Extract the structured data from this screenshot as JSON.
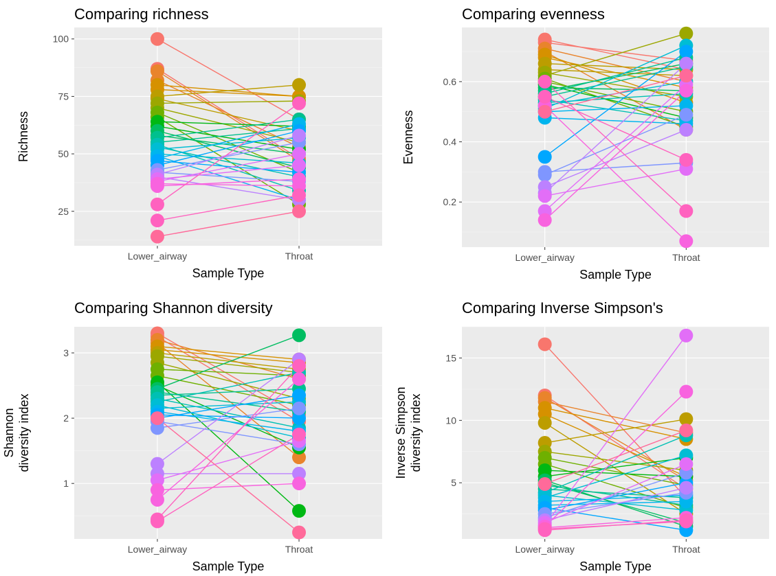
{
  "chart_data": [
    {
      "type": "line",
      "title": "Comparing richness",
      "xlabel": "Sample Type",
      "ylabel": [
        "Richness"
      ],
      "categories": [
        "Lower_airway",
        "Throat"
      ],
      "ylim": [
        10,
        105
      ],
      "yticks": [
        25,
        50,
        75,
        100
      ],
      "pairs": [
        [
          100,
          65
        ],
        [
          87,
          48
        ],
        [
          86,
          47
        ],
        [
          82,
          53
        ],
        [
          80,
          75
        ],
        [
          78,
          75
        ],
        [
          75,
          80
        ],
        [
          74,
          60
        ],
        [
          72,
          73
        ],
        [
          70,
          55
        ],
        [
          68,
          42
        ],
        [
          66,
          28
        ],
        [
          64,
          62
        ],
        [
          62,
          52
        ],
        [
          60,
          44
        ],
        [
          58,
          50
        ],
        [
          57,
          65
        ],
        [
          55,
          61
        ],
        [
          54,
          34
        ],
        [
          53,
          40
        ],
        [
          52,
          57
        ],
        [
          50,
          46
        ],
        [
          49,
          30
        ],
        [
          48,
          63
        ],
        [
          47,
          42
        ],
        [
          45,
          60
        ],
        [
          43,
          55
        ],
        [
          42,
          38
        ],
        [
          41,
          58
        ],
        [
          40,
          30
        ],
        [
          39,
          45
        ],
        [
          38,
          50
        ],
        [
          37,
          36
        ],
        [
          36,
          39
        ],
        [
          28,
          72
        ],
        [
          21,
          32
        ],
        [
          14,
          25
        ]
      ]
    },
    {
      "type": "line",
      "title": "Comparing evenness",
      "xlabel": "Sample Type",
      "ylabel": [
        "Evenness"
      ],
      "categories": [
        "Lower_airway",
        "Throat"
      ],
      "ylim": [
        0.05,
        0.78
      ],
      "yticks": [
        0.2,
        0.4,
        0.6
      ],
      "pairs": [
        [
          0.74,
          0.64
        ],
        [
          0.73,
          0.67
        ],
        [
          0.71,
          0.6
        ],
        [
          0.7,
          0.44
        ],
        [
          0.69,
          0.53
        ],
        [
          0.68,
          0.58
        ],
        [
          0.66,
          0.64
        ],
        [
          0.64,
          0.62
        ],
        [
          0.63,
          0.55
        ],
        [
          0.62,
          0.76
        ],
        [
          0.61,
          0.45
        ],
        [
          0.6,
          0.5
        ],
        [
          0.59,
          0.48
        ],
        [
          0.58,
          0.57
        ],
        [
          0.57,
          0.66
        ],
        [
          0.56,
          0.68
        ],
        [
          0.55,
          0.65
        ],
        [
          0.54,
          0.47
        ],
        [
          0.53,
          0.56
        ],
        [
          0.52,
          0.6
        ],
        [
          0.51,
          0.72
        ],
        [
          0.5,
          0.52
        ],
        [
          0.48,
          0.46
        ],
        [
          0.35,
          0.7
        ],
        [
          0.3,
          0.33
        ],
        [
          0.29,
          0.49
        ],
        [
          0.25,
          0.44
        ],
        [
          0.23,
          0.66
        ],
        [
          0.22,
          0.31
        ],
        [
          0.17,
          0.59
        ],
        [
          0.14,
          0.57
        ],
        [
          0.52,
          0.07
        ],
        [
          0.6,
          0.17
        ],
        [
          0.55,
          0.34
        ],
        [
          0.5,
          0.62
        ]
      ]
    },
    {
      "type": "line",
      "title": "Comparing Shannon diversity",
      "xlabel": "Sample Type",
      "ylabel": [
        "Shannon",
        "diversity index"
      ],
      "categories": [
        "Lower_airway",
        "Throat"
      ],
      "ylim": [
        0.15,
        3.4
      ],
      "yticks": [
        1,
        2,
        3
      ],
      "pairs": [
        [
          3.3,
          2.05
        ],
        [
          3.25,
          1.95
        ],
        [
          3.2,
          2.6
        ],
        [
          3.15,
          1.4
        ],
        [
          3.1,
          2.9
        ],
        [
          3.05,
          2.85
        ],
        [
          3.0,
          2.75
        ],
        [
          2.95,
          2.7
        ],
        [
          2.85,
          2.3
        ],
        [
          2.75,
          2.65
        ],
        [
          2.65,
          2.2
        ],
        [
          2.55,
          0.58
        ],
        [
          2.5,
          1.55
        ],
        [
          2.45,
          3.27
        ],
        [
          2.4,
          2.1
        ],
        [
          2.35,
          2.45
        ],
        [
          2.3,
          1.85
        ],
        [
          2.25,
          2.7
        ],
        [
          2.2,
          1.7
        ],
        [
          2.15,
          2.25
        ],
        [
          2.1,
          1.8
        ],
        [
          2.05,
          2.0
        ],
        [
          2.0,
          2.35
        ],
        [
          1.95,
          1.6
        ],
        [
          1.85,
          2.15
        ],
        [
          1.3,
          2.9
        ],
        [
          1.15,
          1.15
        ],
        [
          1.05,
          1.65
        ],
        [
          0.9,
          1.0
        ],
        [
          0.75,
          2.6
        ],
        [
          0.45,
          2.8
        ],
        [
          0.42,
          1.75
        ],
        [
          2.0,
          0.25
        ]
      ]
    },
    {
      "type": "line",
      "title": "Comparing Inverse Simpson's",
      "xlabel": "Sample Type",
      "ylabel": [
        "Inverse Simpson",
        "diversity index"
      ],
      "categories": [
        "Lower_airway",
        "Throat"
      ],
      "ylim": [
        0.5,
        17.5
      ],
      "yticks": [
        5,
        10,
        15
      ],
      "pairs": [
        [
          16.1,
          3.8
        ],
        [
          12.0,
          4.5
        ],
        [
          11.8,
          5.2
        ],
        [
          11.5,
          9.0
        ],
        [
          11.0,
          8.5
        ],
        [
          10.5,
          5.5
        ],
        [
          9.8,
          2.5
        ],
        [
          8.2,
          10.1
        ],
        [
          7.5,
          6.0
        ],
        [
          7.0,
          4.8
        ],
        [
          6.5,
          3.0
        ],
        [
          6.0,
          5.5
        ],
        [
          5.5,
          7.0
        ],
        [
          5.2,
          1.5
        ],
        [
          5.0,
          1.8
        ],
        [
          4.8,
          3.2
        ],
        [
          4.5,
          3.8
        ],
        [
          4.2,
          8.8
        ],
        [
          4.0,
          2.8
        ],
        [
          3.8,
          7.2
        ],
        [
          3.5,
          4.0
        ],
        [
          3.2,
          3.5
        ],
        [
          3.0,
          1.2
        ],
        [
          2.8,
          5.0
        ],
        [
          2.5,
          4.2
        ],
        [
          2.2,
          5.8
        ],
        [
          2.0,
          4.6
        ],
        [
          1.8,
          6.5
        ],
        [
          1.6,
          16.8
        ],
        [
          1.5,
          12.3
        ],
        [
          1.4,
          2.2
        ],
        [
          1.3,
          1.9
        ],
        [
          1.2,
          2.0
        ],
        [
          4.9,
          9.2
        ]
      ]
    }
  ],
  "palette": [
    "#F8766D",
    "#E9842C",
    "#D69100",
    "#BC9D00",
    "#9CA700",
    "#6FB000",
    "#00B813",
    "#00BD61",
    "#00C08E",
    "#00C0B4",
    "#00BDD4",
    "#00B5EE",
    "#00A7FF",
    "#7F96FF",
    "#BC81FF",
    "#E26EF7",
    "#F863DF",
    "#FF62BF",
    "#FF6A9A"
  ]
}
